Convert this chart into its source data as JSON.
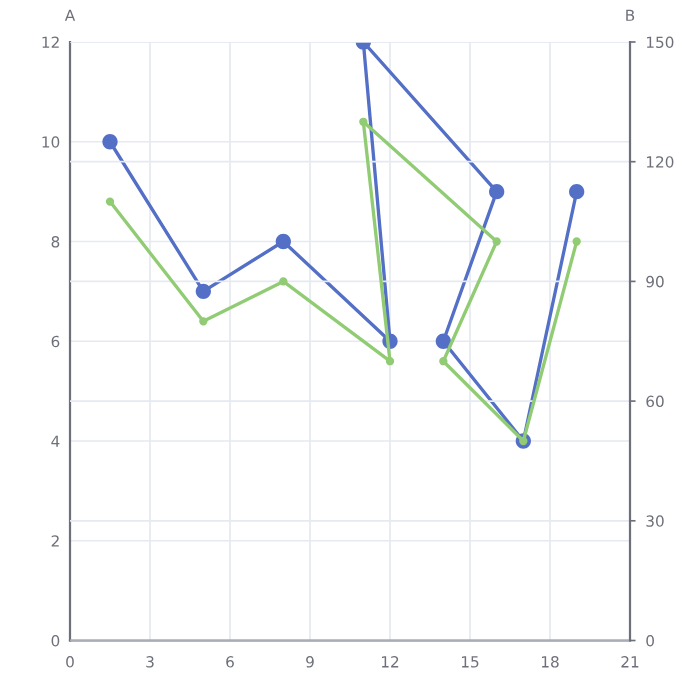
{
  "chart_data": {
    "type": "line",
    "ylabel": "A",
    "y2label": "B",
    "xlim": [
      0,
      21
    ],
    "xticks": [
      0,
      3,
      6,
      9,
      12,
      15,
      18,
      21
    ],
    "ylim": [
      0,
      12
    ],
    "yticks": [
      0,
      2,
      4,
      6,
      8,
      10,
      12
    ],
    "y2lim": [
      0,
      150
    ],
    "y2ticks": [
      0,
      30,
      60,
      90,
      120,
      150
    ],
    "grid": true,
    "marker": "circle",
    "line_style": "solid",
    "series": [
      {
        "color": "#5470c6",
        "x": [
          1.5,
          5,
          8,
          12,
          11,
          16,
          14,
          17,
          19
        ],
        "values": [
          10,
          7,
          8,
          6,
          12,
          9,
          6,
          4,
          9
        ]
      },
      {
        "color": "#91cc75",
        "axis": "y2",
        "x": [
          1.5,
          5,
          8,
          12,
          11,
          16,
          14,
          17,
          19
        ],
        "values": [
          110,
          80,
          90,
          70,
          130,
          100,
          70,
          50,
          100
        ]
      }
    ]
  }
}
